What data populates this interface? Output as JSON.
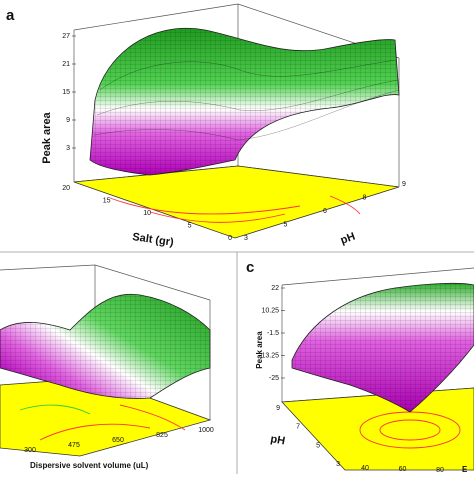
{
  "figure": {
    "panels": [
      {
        "letter": "a",
        "zlabel": "Peak area",
        "xlabel": "Salt (gr)",
        "ylabel": "pH",
        "zticks": [
          "27",
          "21",
          "15",
          "9",
          "3"
        ],
        "xticks": [
          "20",
          "15",
          "10",
          "5",
          "0"
        ],
        "yticks": [
          "3",
          "5",
          "6",
          "8",
          "9"
        ]
      },
      {
        "letter": "",
        "zlabel": "",
        "xlabel": "Dispersive solvent volume (uL)",
        "ylabel": "",
        "zticks": [],
        "xticks": [
          "300",
          "475",
          "650",
          "825",
          "1000"
        ],
        "yticks": []
      },
      {
        "letter": "c",
        "zlabel": "Peak area",
        "xlabel": "",
        "ylabel": "pH",
        "zticks": [
          "22",
          "10.25",
          "-1.5",
          "-13.25",
          "-25"
        ],
        "xticks": [
          "40",
          "60",
          "80"
        ],
        "yticks": [
          "9",
          "7",
          "5",
          "3"
        ],
        "partial_xlabel": "E"
      }
    ]
  },
  "chart_data": [
    {
      "type": "surface",
      "panel": "a",
      "zlabel": "Peak area",
      "xlabel": "Salt (gr)",
      "ylabel": "pH",
      "x_range": [
        0,
        20
      ],
      "y_range": [
        3,
        9
      ],
      "z_range": [
        3,
        27
      ],
      "z_ticks": [
        27,
        21,
        15,
        9,
        3
      ],
      "x_ticks": [
        20,
        15,
        10,
        5,
        0
      ],
      "y_ticks": [
        3,
        5,
        6,
        8,
        9
      ],
      "surface": {
        "x": [
          0,
          5,
          10,
          15,
          20
        ],
        "y": [
          3,
          4.5,
          6,
          7.5,
          9
        ],
        "z": [
          [
            8,
            13,
            15,
            13,
            9
          ],
          [
            10,
            16,
            18,
            16,
            12
          ],
          [
            14,
            20,
            22,
            20,
            16
          ],
          [
            18,
            23,
            25,
            23,
            19
          ],
          [
            22,
            25,
            26,
            24,
            21
          ]
        ]
      },
      "colors": {
        "high": "#1f9b1f",
        "mid": "#ffffff",
        "low": "#cc00cc",
        "floor": "#ffff00",
        "contour": "#ff3333"
      }
    },
    {
      "type": "surface",
      "panel": "b",
      "xlabel": "Dispersive solvent volume (uL)",
      "x_range": [
        300,
        1000
      ],
      "x_ticks": [
        300,
        475,
        650,
        825,
        1000
      ],
      "colors": {
        "high": "#1f9b1f",
        "mid": "#ffffff",
        "low": "#cc00cc",
        "floor": "#ffff00",
        "contour": "#ff3333"
      }
    },
    {
      "type": "surface",
      "panel": "c",
      "zlabel": "Peak area",
      "ylabel": "pH",
      "z_range": [
        -25,
        22
      ],
      "z_ticks": [
        22,
        10.25,
        -1.5,
        -13.25,
        -25
      ],
      "x_ticks": [
        40,
        60,
        80
      ],
      "y_range": [
        3,
        9
      ],
      "y_ticks": [
        9,
        7,
        5,
        3
      ],
      "colors": {
        "high": "#1f9b1f",
        "mid": "#ffffff",
        "low": "#cc00cc",
        "floor": "#ffff00",
        "contour": "#ff3333"
      }
    }
  ]
}
